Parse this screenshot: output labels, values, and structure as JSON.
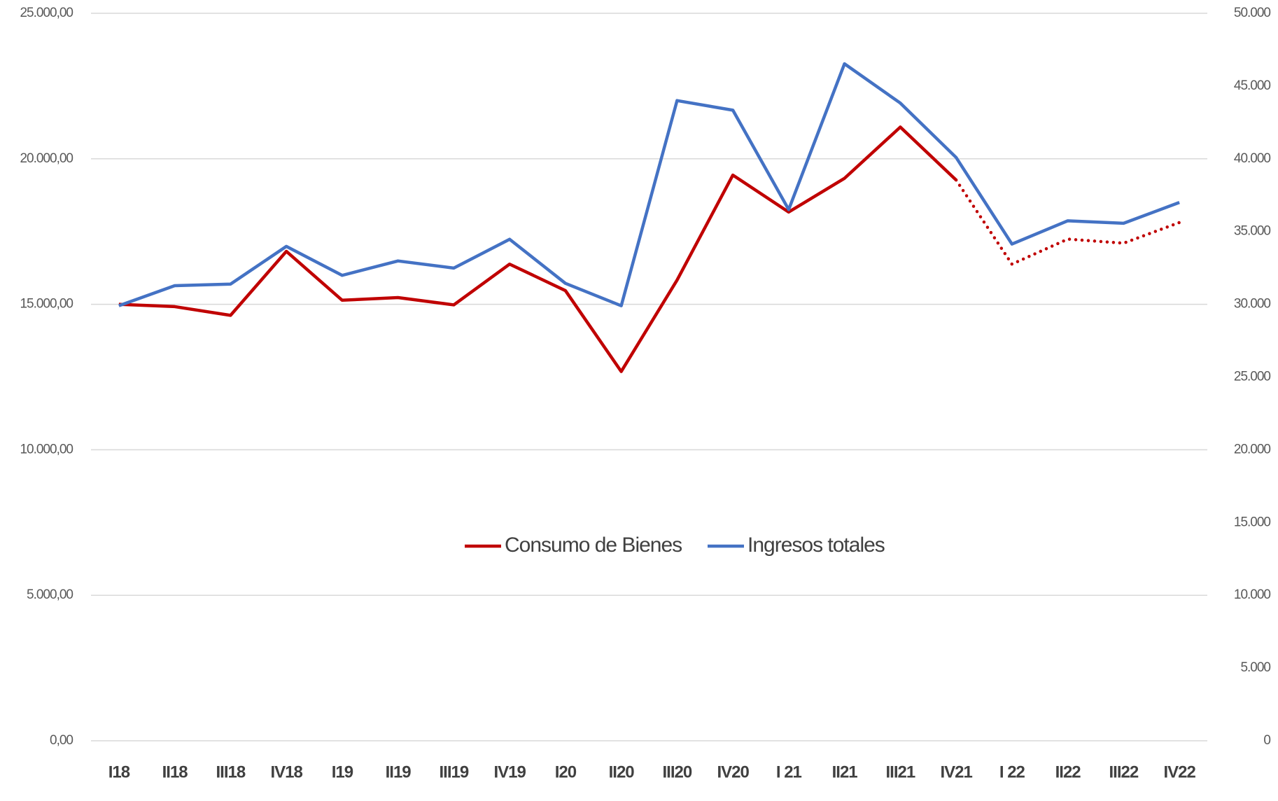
{
  "chart_data": {
    "type": "line",
    "categories": [
      "I18",
      "II18",
      "III18",
      "IV18",
      "I19",
      "II19",
      "III19",
      "IV19",
      "I20",
      "II20",
      "III20",
      "IV20",
      "I 21",
      "II21",
      "III21",
      "IV21",
      "I 22",
      "II22",
      "III22",
      "IV22"
    ],
    "series": [
      {
        "name": "Consumo de Bienes",
        "color": "#c00000",
        "axis": "y",
        "dotted_from": 15,
        "values": [
          15000,
          14920,
          14620,
          16820,
          15140,
          15230,
          14980,
          16380,
          15470,
          12690,
          15830,
          19440,
          18170,
          19330,
          21090,
          19270,
          16380,
          17240,
          17100,
          17810
        ]
      },
      {
        "name": "Ingresos totales",
        "color": "#4472c4",
        "axis": "y2",
        "values": [
          29900,
          31280,
          31390,
          33980,
          31990,
          32980,
          32490,
          34470,
          31440,
          29900,
          44000,
          43340,
          36510,
          46530,
          43830,
          40090,
          34140,
          35740,
          35570,
          37000
        ]
      }
    ],
    "ylim": [
      0,
      25000
    ],
    "yticks": [
      {
        "value": 0,
        "label": "0,00"
      },
      {
        "value": 5000,
        "label": "5.000,00"
      },
      {
        "value": 10000,
        "label": "10.000,00"
      },
      {
        "value": 15000,
        "label": "15.000,00"
      },
      {
        "value": 20000,
        "label": "20.000,00"
      },
      {
        "value": 25000,
        "label": "25.000,00"
      }
    ],
    "y2lim": [
      0,
      50000
    ],
    "y2ticks": [
      0,
      {
        "value": 5000,
        "label": "5.000"
      },
      {
        "value": 10000,
        "label": "10.000"
      },
      {
        "value": 15000,
        "label": "15.000"
      },
      {
        "value": 20000,
        "label": "20.000"
      },
      {
        "value": 25000,
        "label": "25.000"
      },
      {
        "value": 30000,
        "label": "30.000"
      },
      {
        "value": 35000,
        "label": "35.000"
      },
      {
        "value": 40000,
        "label": "40.000"
      },
      {
        "value": 45000,
        "label": "45.000"
      },
      {
        "value": 50000,
        "label": "50.000"
      }
    ],
    "grid": true,
    "legend": "center"
  }
}
